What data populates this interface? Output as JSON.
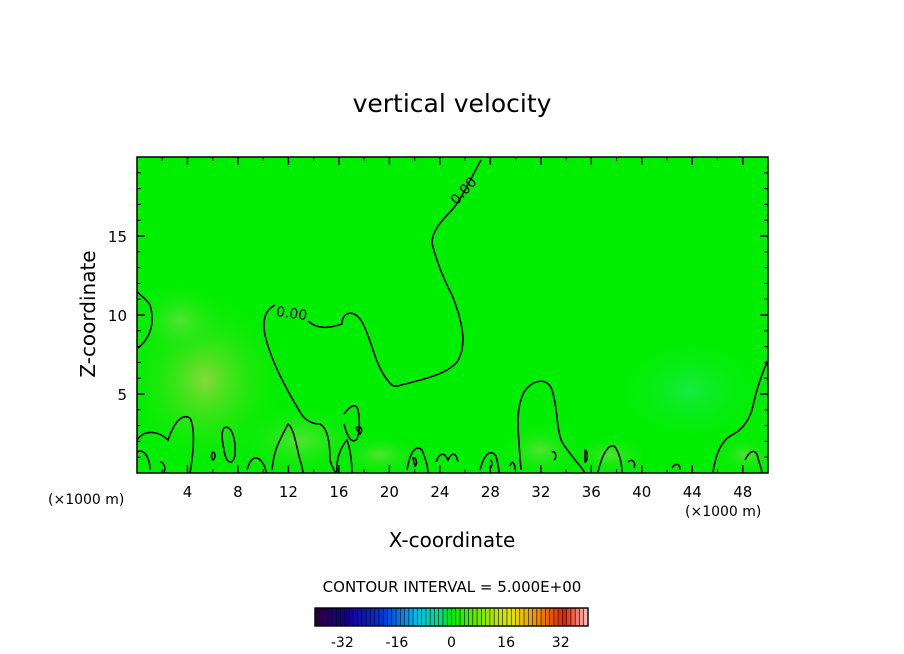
{
  "chart_data": {
    "type": "heatmap",
    "title": "vertical velocity",
    "xlabel": "X-coordinate",
    "ylabel": "Z-coordinate",
    "x_unit": "(×1000 m)",
    "y_unit": "(×1000 m)",
    "xlim": [
      0,
      50
    ],
    "ylim": [
      0,
      20
    ],
    "x_ticks": [
      "4",
      "8",
      "12",
      "16",
      "20",
      "24",
      "28",
      "32",
      "36",
      "40",
      "44",
      "48"
    ],
    "y_ticks": [
      "5",
      "10",
      "15"
    ],
    "contour_interval_text": "CONTOUR INTERVAL = 5.000E+00",
    "contour_labels": [
      "0.00",
      "0.00"
    ],
    "colorbar": {
      "min": -40,
      "max": 40,
      "tick_labels": [
        "-32",
        "-16",
        "0",
        "16",
        "32"
      ],
      "tick_values": [
        -32,
        -16,
        0,
        16,
        32
      ]
    },
    "field_summary": "near-zero everywhere (green), weak positive (yellow-green) updrafts near the surface",
    "colors": {
      "field_base": "#00ee00",
      "field_weak_positive": "#7ad93a",
      "contour": "#000000"
    }
  }
}
